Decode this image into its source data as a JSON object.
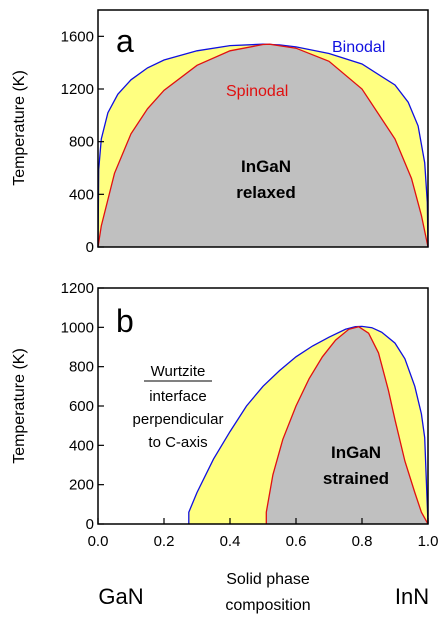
{
  "chart_data": [
    {
      "panel": "a",
      "type": "area",
      "ylabel": "Temperature (K)",
      "xlim": [
        0,
        1
      ],
      "ylim": [
        0,
        1800
      ],
      "yticks": [
        0,
        400,
        800,
        1200,
        1600
      ],
      "xticks_shown": false,
      "series": [
        {
          "name": "Binodal",
          "color": "#1010e0",
          "fill": "#ffff80",
          "x": [
            0.0,
            0.002,
            0.01,
            0.03,
            0.06,
            0.1,
            0.15,
            0.2,
            0.3,
            0.4,
            0.5,
            0.55,
            0.6,
            0.7,
            0.8,
            0.9,
            0.94,
            0.97,
            0.99,
            0.998,
            1.0
          ],
          "y": [
            0,
            590,
            820,
            1020,
            1160,
            1270,
            1360,
            1420,
            1490,
            1530,
            1540,
            1535,
            1520,
            1470,
            1390,
            1230,
            1100,
            920,
            640,
            340,
            0
          ]
        },
        {
          "name": "Spinodal",
          "color": "#e01010",
          "fill": "#c0c0c0",
          "x": [
            0.0,
            0.01,
            0.05,
            0.1,
            0.15,
            0.2,
            0.3,
            0.4,
            0.5,
            0.52,
            0.6,
            0.7,
            0.8,
            0.9,
            0.95,
            0.98,
            1.0
          ],
          "y": [
            0,
            160,
            560,
            860,
            1050,
            1190,
            1380,
            1490,
            1538,
            1540,
            1510,
            1410,
            1200,
            820,
            520,
            240,
            0
          ]
        }
      ],
      "annotations": [
        "InGaN",
        "relaxed"
      ]
    },
    {
      "panel": "b",
      "type": "area",
      "ylabel": "Temperature (K)",
      "xlabel": "Solid phase composition",
      "xlim": [
        0,
        1
      ],
      "ylim": [
        0,
        1200
      ],
      "yticks": [
        0,
        200,
        400,
        600,
        800,
        1000,
        1200
      ],
      "xticks": [
        0.0,
        0.2,
        0.4,
        0.6,
        0.8,
        1.0
      ],
      "series": [
        {
          "name": "Binodal",
          "color": "#1010e0",
          "fill": "#ffff80",
          "x": [
            0.275,
            0.275,
            0.3,
            0.35,
            0.4,
            0.45,
            0.5,
            0.55,
            0.6,
            0.65,
            0.7,
            0.75,
            0.78,
            0.8,
            0.83,
            0.86,
            0.9,
            0.93,
            0.96,
            0.98,
            0.99,
            1.0
          ],
          "y": [
            0,
            60,
            160,
            330,
            470,
            600,
            700,
            780,
            850,
            905,
            950,
            990,
            1003,
            1005,
            998,
            975,
            920,
            840,
            700,
            560,
            440,
            0
          ]
        },
        {
          "name": "Spinodal",
          "color": "#e01010",
          "fill": "#c0c0c0",
          "x": [
            0.51,
            0.51,
            0.53,
            0.56,
            0.6,
            0.64,
            0.68,
            0.72,
            0.76,
            0.79,
            0.82,
            0.85,
            0.88,
            0.9,
            0.93,
            0.96,
            0.98,
            1.0
          ],
          "y": [
            0,
            60,
            250,
            430,
            600,
            740,
            850,
            935,
            990,
            1003,
            970,
            870,
            680,
            530,
            320,
            160,
            60,
            0
          ]
        }
      ],
      "annotations": [
        "Wurtzite",
        "interface",
        "perpendicular",
        "to C-axis",
        "InGaN",
        "strained"
      ]
    }
  ],
  "text": {
    "panel_a_letter": "a",
    "panel_b_letter": "b",
    "ylabel_a": "Temperature (K)",
    "ylabel_b": "Temperature (K)",
    "binodal": "Binodal",
    "spinodal": "Spinodal",
    "relaxed_line1": "InGaN",
    "relaxed_line2": "relaxed",
    "strained_line1": "InGaN",
    "strained_line2": "strained",
    "wurtzite_1": "Wurtzite",
    "wurtzite_2": "interface",
    "wurtzite_3": "perpendicular",
    "wurtzite_4": "to C-axis",
    "left_end": "GaN",
    "right_end": "InN",
    "xlabel_1": "Solid phase",
    "xlabel_2": "composition",
    "yticks_a": [
      "1600",
      "1200",
      "800",
      "400",
      "0"
    ],
    "yticks_b": [
      "1200",
      "1000",
      "800",
      "600",
      "400",
      "200",
      "0"
    ],
    "xticks_b": [
      "0.0",
      "0.2",
      "0.4",
      "0.6",
      "0.8",
      "1.0"
    ]
  },
  "colors": {
    "binodal": "#1010e0",
    "spinodal": "#e01010",
    "metastable_fill": "#ffff80",
    "unstable_fill": "#c0c0c0"
  }
}
